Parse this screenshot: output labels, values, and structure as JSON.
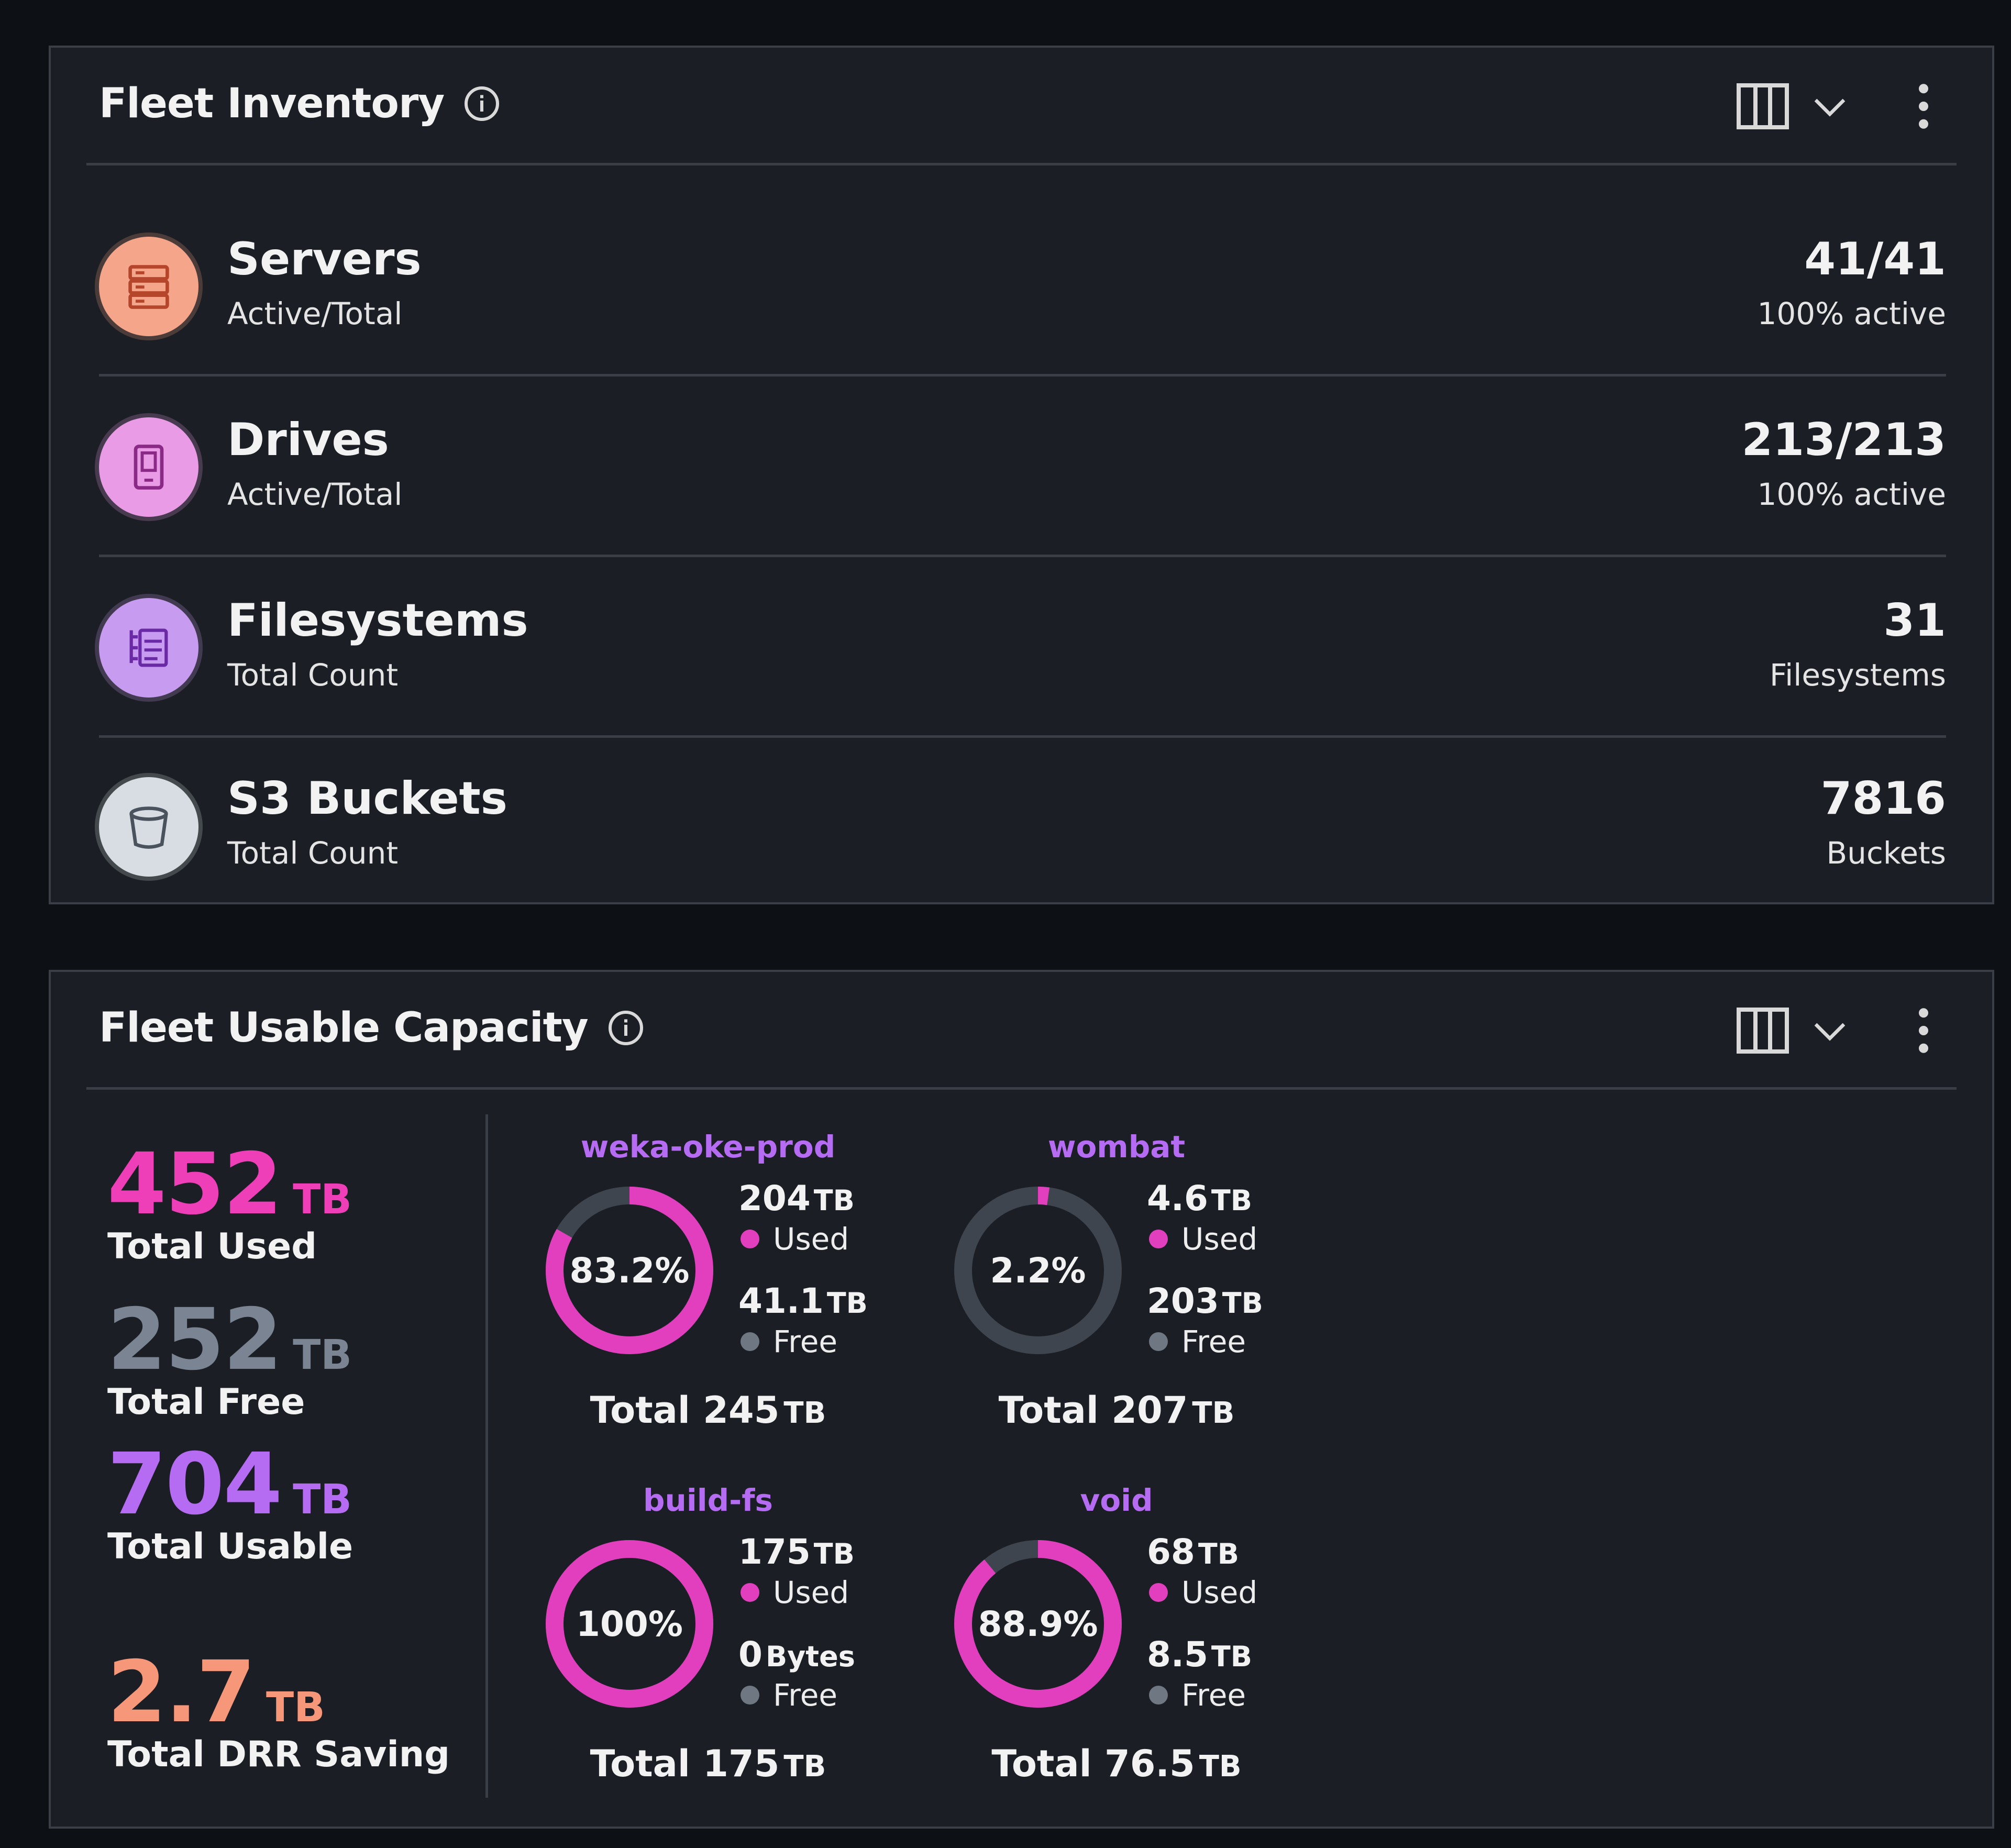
{
  "inventory": {
    "title": "Fleet Inventory",
    "rows": [
      {
        "name": "Servers",
        "sub": "Active/Total",
        "value": "41/41",
        "value_sub": "100% active",
        "icon": "server-icon",
        "color": "#f4a58a"
      },
      {
        "name": "Drives",
        "sub": "Active/Total",
        "value": "213/213",
        "value_sub": "100% active",
        "icon": "drive-icon",
        "color": "#e99be6"
      },
      {
        "name": "Filesystems",
        "sub": "Total Count",
        "value": "31",
        "value_sub": "Filesystems",
        "icon": "filesystem-icon",
        "color": "#c79bef"
      },
      {
        "name": "S3 Buckets",
        "sub": "Total Count",
        "value": "7816",
        "value_sub": "Buckets",
        "icon": "bucket-icon",
        "color": "#d8dde4"
      }
    ]
  },
  "capacity": {
    "title": "Fleet Usable Capacity",
    "summary": [
      {
        "value": "452",
        "unit": "TB",
        "label": "Total Used",
        "color": "#ef3fb8"
      },
      {
        "value": "252",
        "unit": "TB",
        "label": "Total Free",
        "color": "#7a8492"
      },
      {
        "value": "704",
        "unit": "TB",
        "label": "Total Usable",
        "color": "#b56cf2"
      },
      {
        "value": "2.7",
        "unit": "TB",
        "label": "Total DRR Saving",
        "color": "#f6977a"
      }
    ],
    "clusters": [
      {
        "name": "weka-oke-prod",
        "percent_label": "83.2%",
        "used_fraction": 0.832,
        "used_value": "204",
        "used_unit": "TB",
        "used_label": "Used",
        "free_value": "41.1",
        "free_unit": "TB",
        "free_label": "Free",
        "total_prefix": "Total",
        "total_value": "245",
        "total_unit": "TB"
      },
      {
        "name": "wombat",
        "percent_label": "2.2%",
        "used_fraction": 0.022,
        "used_value": "4.6",
        "used_unit": "TB",
        "used_label": "Used",
        "free_value": "203",
        "free_unit": "TB",
        "free_label": "Free",
        "total_prefix": "Total",
        "total_value": "207",
        "total_unit": "TB"
      },
      {
        "name": "build-fs",
        "percent_label": "100%",
        "used_fraction": 1.0,
        "used_value": "175",
        "used_unit": "TB",
        "used_label": "Used",
        "free_value": "0",
        "free_unit": "Bytes",
        "free_label": "Free",
        "total_prefix": "Total",
        "total_value": "175",
        "total_unit": "TB"
      },
      {
        "name": "void",
        "percent_label": "88.9%",
        "used_fraction": 0.889,
        "used_value": "68",
        "used_unit": "TB",
        "used_label": "Used",
        "free_value": "8.5",
        "free_unit": "TB",
        "free_label": "Free",
        "total_prefix": "Total",
        "total_value": "76.5",
        "total_unit": "TB"
      }
    ],
    "colors": {
      "used": "#e23fbf",
      "free": "#3f454e"
    }
  }
}
